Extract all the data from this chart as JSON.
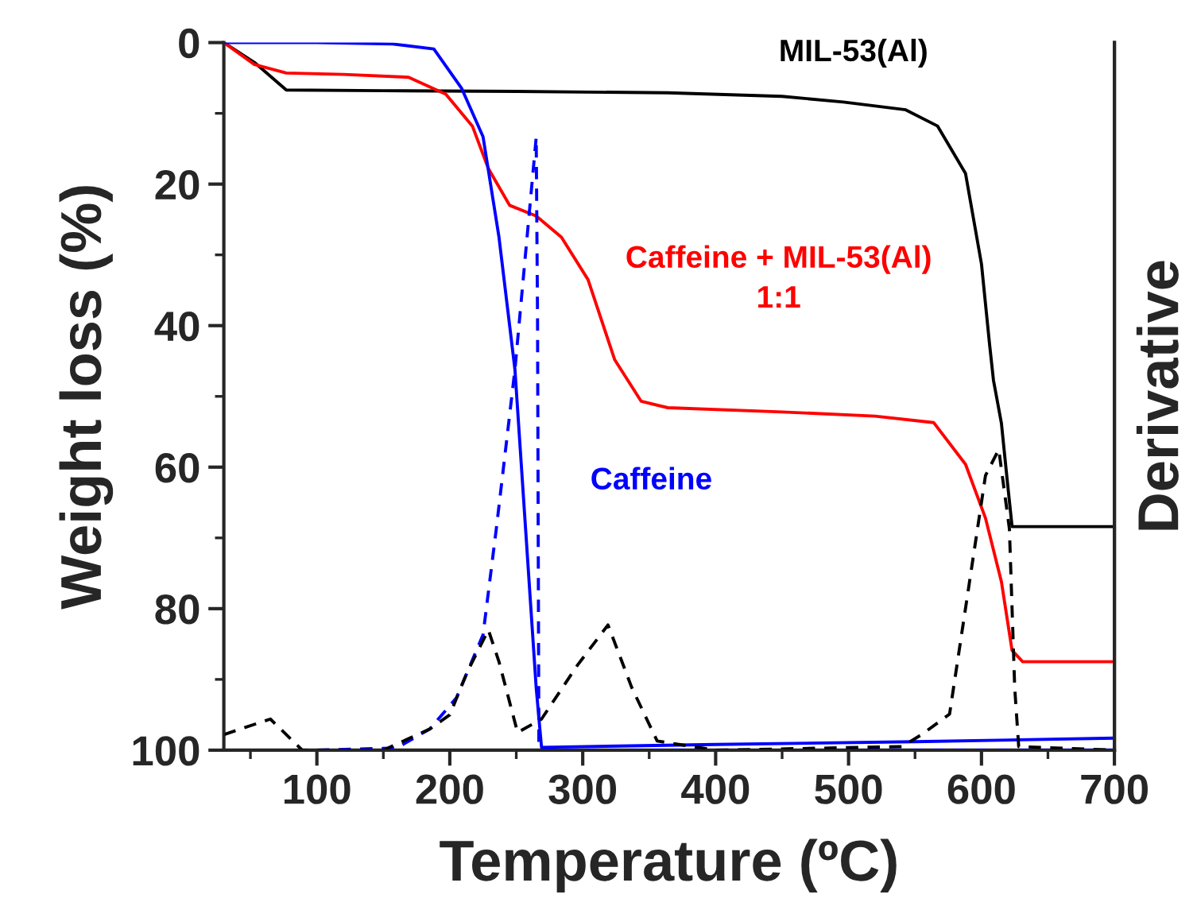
{
  "chart_data": {
    "type": "line",
    "xlabel": "Temperature (ºC)",
    "ylabel": "Weight loss (%)",
    "y2label": "Derivative",
    "xlim": [
      30,
      700
    ],
    "xticks": [
      100,
      200,
      300,
      400,
      500,
      600,
      700
    ],
    "ylim": [
      100,
      0
    ],
    "yticks": [
      0,
      20,
      40,
      60,
      80,
      100
    ],
    "grid": false,
    "marker": "none",
    "series": [
      {
        "name": "MIL-53(Al)",
        "color": "#000000",
        "line_style": "solid",
        "x": [
          30,
          53,
          77,
          150,
          250,
          364,
          450,
          496,
          543,
          567,
          588,
          600,
          606,
          609,
          615,
          619,
          623,
          650,
          700
        ],
        "values": [
          0,
          2.8,
          6.7,
          6.8,
          6.9,
          7.1,
          7.6,
          8.4,
          9.5,
          11.8,
          18.5,
          31.3,
          42.5,
          47.7,
          53.8,
          61.2,
          68.4,
          68.4,
          68.4
        ]
      },
      {
        "name": "Caffeine + MIL-53(Al)\n1:1",
        "color": "#ff0000",
        "line_style": "solid",
        "x": [
          30,
          53,
          77,
          120,
          169,
          197,
          217,
          229,
          245,
          265,
          284,
          304,
          324,
          344,
          364,
          450,
          520,
          564,
          588,
          603,
          615,
          623,
          631,
          700
        ],
        "values": [
          0,
          3.1,
          4.3,
          4.5,
          4.9,
          7.3,
          11.8,
          17.8,
          23,
          24.5,
          27.5,
          33.5,
          44.8,
          50.7,
          51.6,
          52.2,
          52.8,
          53.7,
          59.6,
          67.2,
          76.2,
          85.9,
          87.5,
          87.5
        ]
      },
      {
        "name": "Caffeine",
        "color": "#0000ff",
        "line_style": "solid",
        "x": [
          30,
          100,
          157,
          188,
          209,
          225,
          237,
          249,
          257,
          265,
          269,
          400,
          550,
          700
        ],
        "values": [
          0,
          0,
          0.2,
          0.9,
          6.5,
          13.3,
          27.5,
          46.2,
          68.7,
          91.2,
          99.6,
          99.2,
          98.8,
          98.3
        ]
      },
      {
        "color": "#0000ff",
        "line_style": "dashed",
        "x": [
          100,
          160,
          185,
          205,
          225,
          235,
          249,
          265,
          266,
          267,
          270,
          400,
          700
        ],
        "values": [
          100,
          99.7,
          97,
          92.6,
          83.7,
          68.7,
          46.2,
          13.4,
          38.7,
          98.7,
          100,
          100,
          100
        ]
      },
      {
        "color": "#000000",
        "line_style": "dashed",
        "x": [
          30,
          65,
          89,
          150,
          185,
          200,
          213,
          229,
          237,
          251,
          269,
          296,
          319,
          337,
          356,
          400,
          540,
          555,
          576,
          591,
          603,
          613,
          621,
          625,
          628,
          700
        ],
        "values": [
          97.8,
          95.6,
          100,
          100,
          97,
          95,
          89,
          83,
          87.5,
          97.5,
          95.6,
          88,
          82.3,
          91.2,
          98.7,
          100,
          99.5,
          97.8,
          94.9,
          76.2,
          61.2,
          57.5,
          68.7,
          91.2,
          99.5,
          100
        ]
      }
    ]
  }
}
